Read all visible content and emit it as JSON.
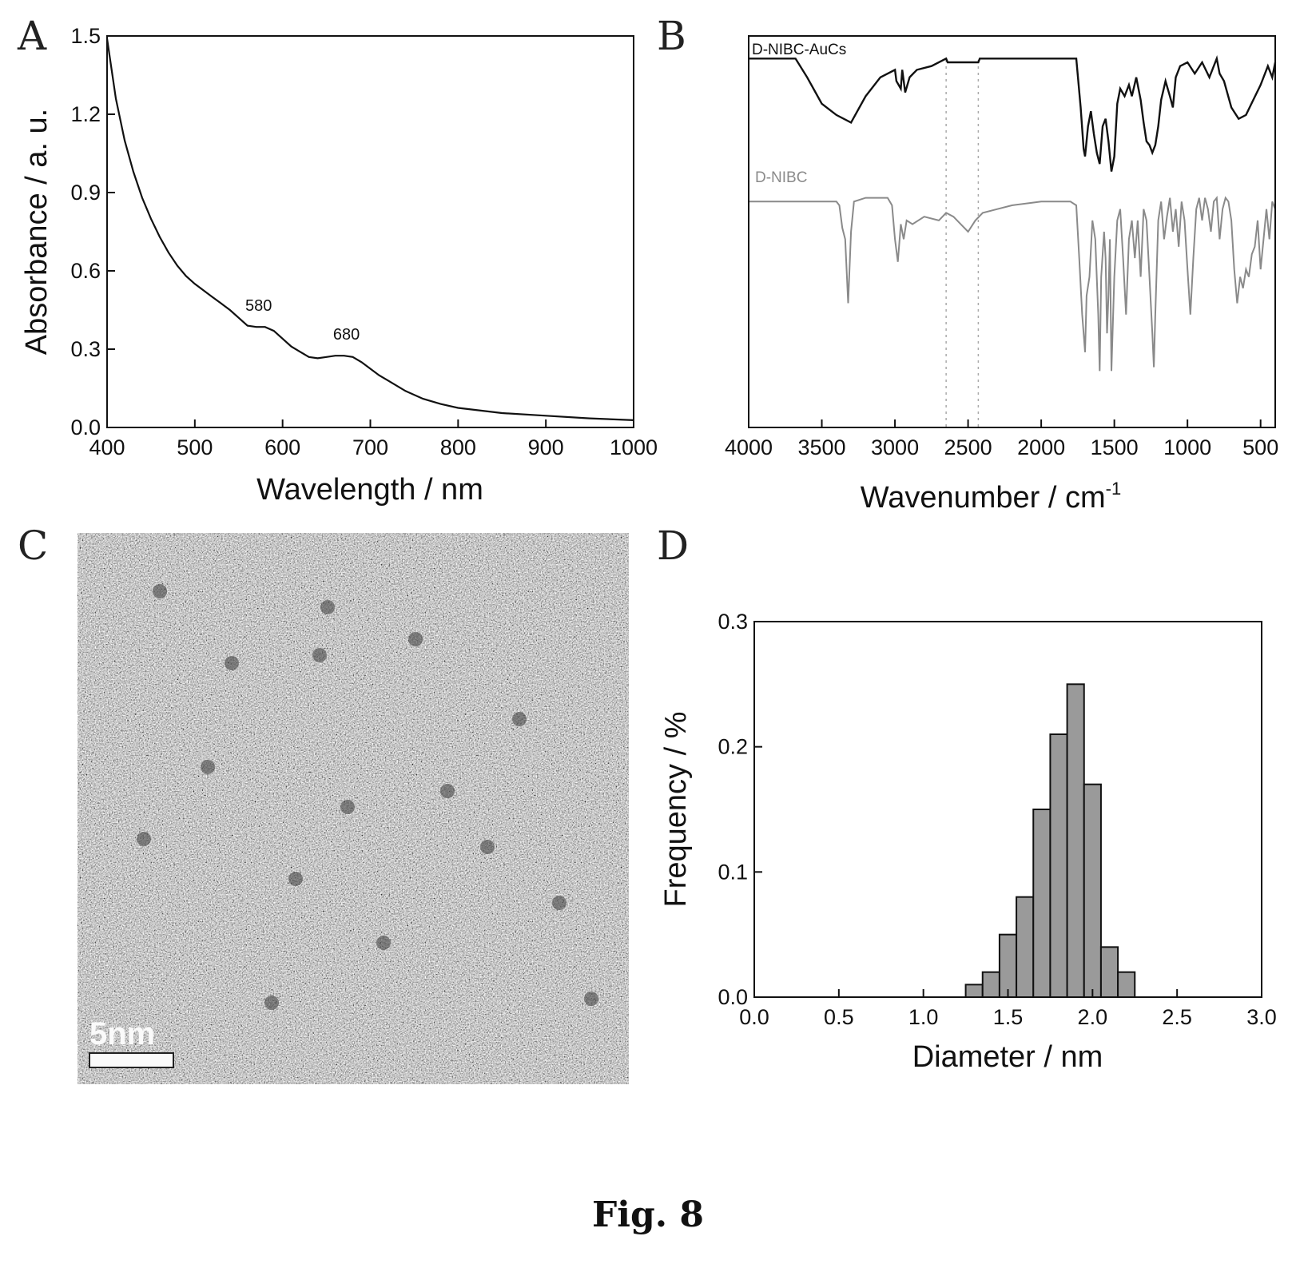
{
  "figure": {
    "caption": "Fig. 8"
  },
  "chart_data": [
    {
      "panel": "A",
      "type": "line",
      "xlabel": "Wavelength / nm",
      "ylabel": "Absorbance / a. u.",
      "xlim": [
        400,
        1000
      ],
      "ylim": [
        0,
        1.5
      ],
      "xticks": [
        "400",
        "500",
        "600",
        "700",
        "800",
        "900",
        "1000"
      ],
      "yticks": [
        "0.0",
        "0.3",
        "0.6",
        "0.9",
        "1.2",
        "1.5"
      ],
      "series": [
        {
          "color": "#111111",
          "x": [
            400,
            410,
            420,
            430,
            440,
            450,
            460,
            470,
            480,
            490,
            500,
            510,
            520,
            530,
            540,
            550,
            560,
            570,
            580,
            590,
            600,
            610,
            620,
            630,
            640,
            650,
            660,
            670,
            680,
            690,
            700,
            710,
            720,
            740,
            760,
            780,
            800,
            850,
            900,
            950,
            1000
          ],
          "y": [
            1.49,
            1.26,
            1.1,
            0.98,
            0.88,
            0.8,
            0.73,
            0.67,
            0.62,
            0.58,
            0.55,
            0.525,
            0.5,
            0.475,
            0.45,
            0.42,
            0.39,
            0.385,
            0.385,
            0.37,
            0.34,
            0.31,
            0.29,
            0.27,
            0.265,
            0.27,
            0.275,
            0.275,
            0.27,
            0.25,
            0.225,
            0.2,
            0.18,
            0.14,
            0.11,
            0.09,
            0.075,
            0.055,
            0.045,
            0.035,
            0.028
          ]
        }
      ],
      "annotations": [
        {
          "text": "580",
          "x": 580,
          "y": 0.385
        },
        {
          "text": "680",
          "x": 680,
          "y": 0.275
        }
      ]
    },
    {
      "panel": "B",
      "type": "line",
      "xlabel": "Wavenumber / cm",
      "xlabel_sup": "-1",
      "xlim": [
        4000,
        400
      ],
      "xticks": [
        "4000",
        "3500",
        "3000",
        "2500",
        "2000",
        "1500",
        "1000",
        "500"
      ],
      "reference_lines_x": [
        2650,
        2430
      ],
      "series": [
        {
          "name": "D-NIBC-AuCs",
          "color": "#111111",
          "x": [
            4000,
            3680,
            3600,
            3500,
            3400,
            3300,
            3200,
            3100,
            3000,
            2990,
            2960,
            2950,
            2930,
            2900,
            2850,
            2750,
            2650,
            2640,
            2430,
            2420,
            2000,
            1800,
            1760,
            1730,
            1710,
            1700,
            1680,
            1660,
            1640,
            1620,
            1600,
            1580,
            1560,
            1540,
            1520,
            1500,
            1480,
            1460,
            1430,
            1400,
            1380,
            1350,
            1320,
            1300,
            1280,
            1260,
            1240,
            1220,
            1200,
            1180,
            1150,
            1120,
            1100,
            1080,
            1050,
            1000,
            950,
            900,
            850,
            820,
            800,
            780,
            750,
            700,
            650,
            600,
            550,
            500,
            450,
            420,
            400
          ],
          "y": [
            0.98,
            0.98,
            0.93,
            0.86,
            0.83,
            0.81,
            0.88,
            0.93,
            0.95,
            0.92,
            0.9,
            0.95,
            0.89,
            0.93,
            0.95,
            0.96,
            0.98,
            0.97,
            0.97,
            0.98,
            0.98,
            0.98,
            0.98,
            0.85,
            0.74,
            0.72,
            0.8,
            0.84,
            0.78,
            0.73,
            0.7,
            0.8,
            0.82,
            0.76,
            0.68,
            0.72,
            0.86,
            0.9,
            0.88,
            0.91,
            0.88,
            0.93,
            0.87,
            0.81,
            0.76,
            0.75,
            0.73,
            0.75,
            0.8,
            0.87,
            0.92,
            0.88,
            0.85,
            0.93,
            0.96,
            0.97,
            0.94,
            0.97,
            0.93,
            0.96,
            0.98,
            0.94,
            0.92,
            0.85,
            0.82,
            0.83,
            0.87,
            0.91,
            0.96,
            0.93,
            0.97
          ]
        },
        {
          "name": "D-NIBC",
          "color": "#8a8a8a",
          "x": [
            4000,
            3400,
            3380,
            3360,
            3340,
            3320,
            3300,
            3280,
            3200,
            3050,
            3020,
            3000,
            2980,
            2960,
            2940,
            2920,
            2880,
            2800,
            2700,
            2650,
            2600,
            2550,
            2500,
            2450,
            2400,
            2300,
            2200,
            2000,
            1800,
            1760,
            1740,
            1720,
            1700,
            1690,
            1670,
            1650,
            1630,
            1610,
            1600,
            1590,
            1570,
            1560,
            1550,
            1540,
            1530,
            1520,
            1500,
            1480,
            1460,
            1440,
            1420,
            1400,
            1380,
            1360,
            1340,
            1320,
            1300,
            1280,
            1260,
            1240,
            1230,
            1220,
            1200,
            1180,
            1160,
            1140,
            1120,
            1100,
            1080,
            1060,
            1040,
            1020,
            1000,
            980,
            960,
            940,
            920,
            900,
            880,
            860,
            840,
            820,
            800,
            780,
            760,
            740,
            720,
            700,
            680,
            660,
            640,
            620,
            600,
            580,
            560,
            540,
            520,
            500,
            480,
            460,
            440,
            420,
            400
          ],
          "y": [
            0.6,
            0.6,
            0.59,
            0.53,
            0.5,
            0.33,
            0.52,
            0.6,
            0.61,
            0.61,
            0.59,
            0.5,
            0.44,
            0.54,
            0.5,
            0.55,
            0.54,
            0.56,
            0.55,
            0.57,
            0.56,
            0.54,
            0.52,
            0.55,
            0.57,
            0.58,
            0.59,
            0.6,
            0.6,
            0.59,
            0.45,
            0.3,
            0.2,
            0.35,
            0.4,
            0.55,
            0.5,
            0.3,
            0.15,
            0.4,
            0.52,
            0.45,
            0.25,
            0.35,
            0.5,
            0.15,
            0.4,
            0.55,
            0.58,
            0.45,
            0.3,
            0.5,
            0.55,
            0.45,
            0.55,
            0.4,
            0.58,
            0.55,
            0.4,
            0.25,
            0.16,
            0.3,
            0.55,
            0.6,
            0.5,
            0.56,
            0.61,
            0.52,
            0.58,
            0.48,
            0.6,
            0.55,
            0.42,
            0.3,
            0.45,
            0.58,
            0.61,
            0.55,
            0.61,
            0.58,
            0.52,
            0.6,
            0.61,
            0.5,
            0.58,
            0.61,
            0.6,
            0.55,
            0.42,
            0.33,
            0.4,
            0.37,
            0.42,
            0.4,
            0.46,
            0.48,
            0.55,
            0.42,
            0.5,
            0.58,
            0.5,
            0.6,
            0.58
          ]
        }
      ]
    },
    {
      "panel": "D",
      "type": "bar",
      "xlabel": "Diameter / nm",
      "ylabel": "Frequency / %",
      "xlim": [
        0,
        3.0
      ],
      "ylim": [
        0,
        0.3
      ],
      "xticks": [
        "0.0",
        "0.5",
        "1.0",
        "1.5",
        "2.0",
        "2.5",
        "3.0"
      ],
      "yticks": [
        "0.0",
        "0.1",
        "0.2",
        "0.3"
      ],
      "bar_width": 0.1,
      "bars": [
        {
          "x": 1.3,
          "value": 0.01
        },
        {
          "x": 1.4,
          "value": 0.02
        },
        {
          "x": 1.5,
          "value": 0.05
        },
        {
          "x": 1.6,
          "value": 0.08
        },
        {
          "x": 1.7,
          "value": 0.15
        },
        {
          "x": 1.8,
          "value": 0.21
        },
        {
          "x": 1.9,
          "value": 0.25
        },
        {
          "x": 2.0,
          "value": 0.17
        },
        {
          "x": 2.1,
          "value": 0.04
        },
        {
          "x": 2.2,
          "value": 0.02
        }
      ],
      "bar_fill": "#9a9a9a"
    }
  ],
  "panels": {
    "a": {
      "letter": "A"
    },
    "b": {
      "letter": "B"
    },
    "c": {
      "letter": "C",
      "type": "TEM micrograph",
      "scale_bar_label": "5nm"
    },
    "d": {
      "letter": "D"
    }
  }
}
